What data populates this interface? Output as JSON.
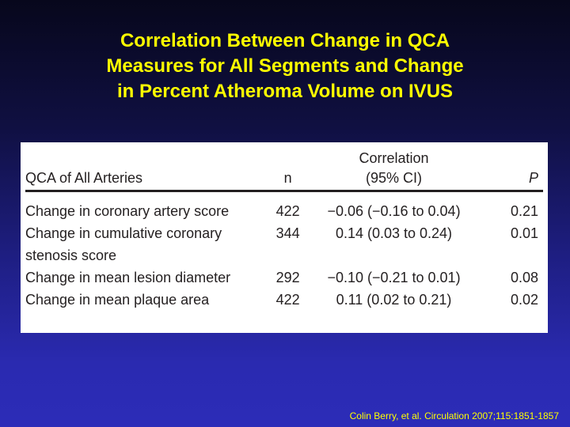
{
  "title": {
    "lines": [
      "Correlation Between Change in QCA",
      "Measures for All Segments and Change",
      "in Percent Atheroma Volume on IVUS"
    ]
  },
  "table": {
    "headers": {
      "label": "QCA of All Arteries",
      "n": "n",
      "correlation_line1": "Correlation",
      "correlation_line2": "(95% CI)",
      "p": "P"
    },
    "rows": [
      {
        "label": "Change in coronary artery score",
        "n": "422",
        "correlation": "−0.06 (−0.16 to 0.04)",
        "p": "0.21"
      },
      {
        "label": "Change in cumulative coronary",
        "label_line2": "stenosis score",
        "n": "344",
        "correlation": "0.14 (0.03 to 0.24)",
        "p": "0.01"
      },
      {
        "label": "Change in mean lesion diameter",
        "n": "292",
        "correlation": "−0.10 (−0.21 to 0.01)",
        "p": "0.08"
      },
      {
        "label": "Change in mean plaque area",
        "n": "422",
        "correlation": "0.11 (0.02 to 0.21)",
        "p": "0.02"
      }
    ]
  },
  "source": "Colin Berry, et al. Circulation 2007;115:1851-1857",
  "colors": {
    "title": "#ffff00",
    "background_top": "#07071c",
    "background_bottom": "#2c2cb8",
    "table_bg": "#ffffff",
    "table_text": "#231f20"
  }
}
